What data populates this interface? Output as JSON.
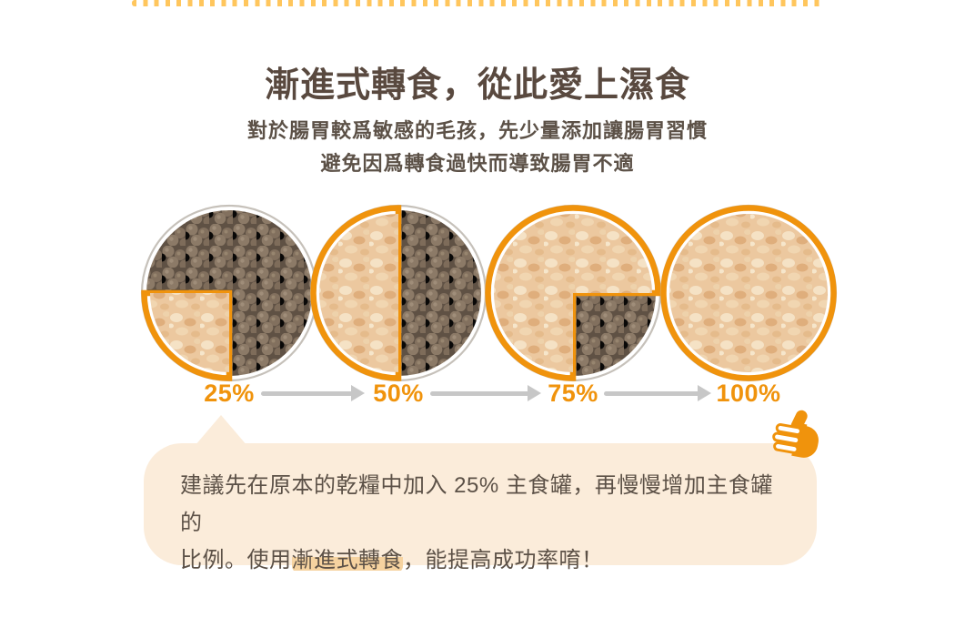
{
  "header": {
    "title": "漸進式轉食，從此愛上濕食",
    "subtitle_lines": [
      "對於腸胃較爲敏感的毛孩，先少量添加讓腸胃習慣",
      "避免因爲轉食過快而導致腸胃不適"
    ]
  },
  "chart_data": {
    "type": "pie",
    "description": "four food bowls showing wet-food ratio steps",
    "steps": [
      {
        "label": "25%",
        "wet_percent": 25
      },
      {
        "label": "50%",
        "wet_percent": 50
      },
      {
        "label": "75%",
        "wet_percent": 75
      },
      {
        "label": "100%",
        "wet_percent": 100
      }
    ]
  },
  "note": {
    "line1": "建議先在原本的乾糧中加入 25% 主食罐，再慢慢增加主食罐的",
    "line2_before": "比例。使用",
    "line2_highlight": "漸進式轉食",
    "line2_after": "，能提高成功率唷！"
  },
  "icons": {
    "thumbs_up": "thumbs-up-icon"
  },
  "colors": {
    "accent_orange": "#F0930C",
    "dot_yellow": "#FFC65D",
    "title_brown": "#59493F",
    "body_text": "#5C5147",
    "arrow_gray": "#C7C7C7",
    "plate_ring": "#C6C1BA",
    "note_bg": "#FBECDA",
    "highlight": "#F6D3A0",
    "kibble_base": "#5F5144",
    "wet_base": "#ECC89F"
  }
}
